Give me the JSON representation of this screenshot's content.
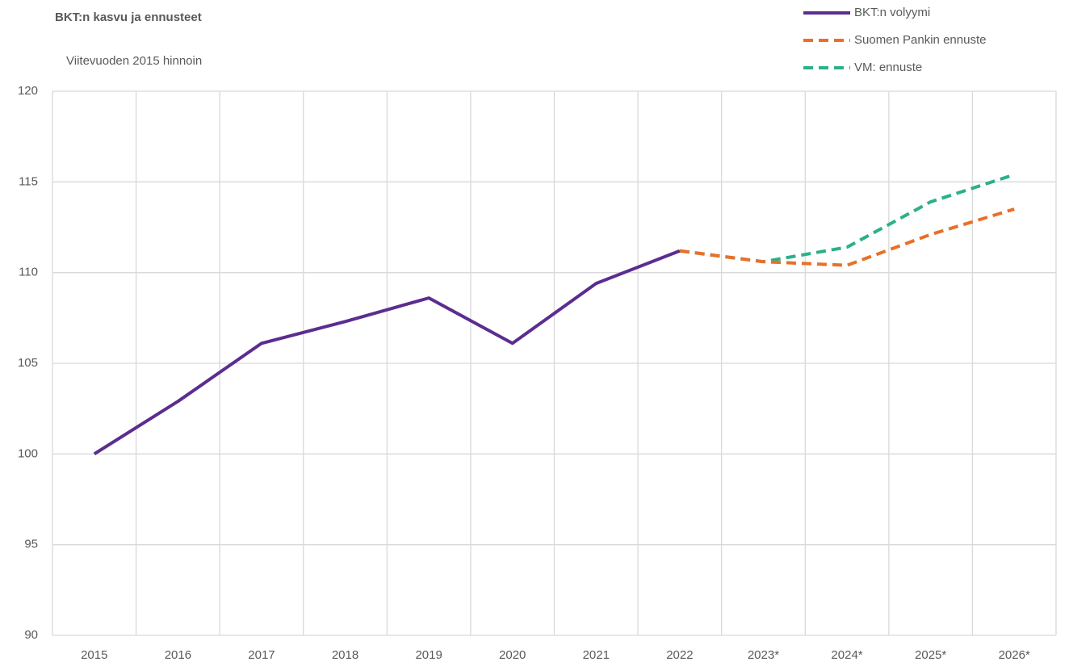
{
  "chart_data": {
    "type": "line",
    "title": "BKT:n kasvu ja ennusteet",
    "subtitle": "Viitevuoden 2015 hinnoin",
    "categories": [
      "2015",
      "2016",
      "2017",
      "2018",
      "2019",
      "2020",
      "2021",
      "2022",
      "2023*",
      "2024*",
      "2025*",
      "2026*"
    ],
    "series": [
      {
        "name": "BKT:n volyymi",
        "color": "#5b2d90",
        "dashed": false,
        "values": [
          100,
          102.9,
          106.1,
          107.3,
          108.6,
          106.1,
          109.4,
          111.2,
          null,
          null,
          null,
          null
        ]
      },
      {
        "name": "Suomen Pankin ennuste",
        "color": "#e8702a",
        "dashed": true,
        "values": [
          null,
          null,
          null,
          null,
          null,
          null,
          null,
          111.2,
          110.6,
          110.4,
          112.1,
          113.5
        ]
      },
      {
        "name": "VM: ennuste",
        "color": "#2bb08a",
        "dashed": true,
        "values": [
          null,
          null,
          null,
          null,
          null,
          null,
          null,
          111.2,
          110.6,
          111.4,
          113.9,
          115.4
        ]
      }
    ],
    "ylim": [
      90,
      120
    ],
    "yticks": [
      90,
      95,
      100,
      105,
      110,
      115,
      120
    ],
    "grid": true,
    "legend": "top-right"
  }
}
